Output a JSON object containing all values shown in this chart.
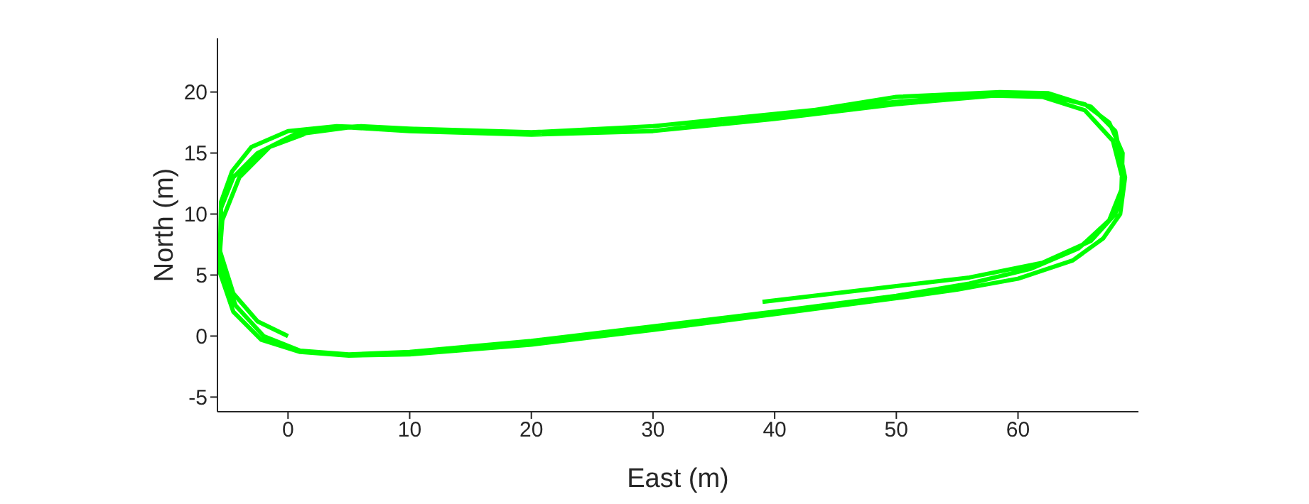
{
  "chart_data": {
    "type": "line",
    "xlabel": "East (m)",
    "ylabel": "North (m)",
    "xlim": [
      -5.8,
      69.9
    ],
    "ylim": [
      -6.2,
      24.4
    ],
    "xticks": [
      0,
      10,
      20,
      30,
      40,
      50,
      60
    ],
    "yticks": [
      -5,
      0,
      5,
      10,
      15,
      20
    ],
    "marker": "none",
    "line_style": "solid",
    "series": [
      {
        "color": "#00ff00",
        "x": [
          0,
          -2.5,
          -4.5,
          -5.6,
          -5.5,
          -4.6,
          -3,
          0,
          4,
          10,
          20,
          30,
          40,
          50,
          58,
          62,
          65.5,
          67.5,
          68.6,
          68.5,
          67.5,
          65,
          61,
          56,
          50,
          40,
          30,
          20,
          10,
          5,
          1,
          -2,
          -4.3,
          -5.6,
          -5.5,
          -4.5,
          -2.5,
          0.5,
          5,
          10,
          20,
          30,
          40,
          50,
          58.5,
          62.5,
          66,
          68,
          68.8,
          68.4,
          67,
          64.5,
          60,
          55,
          50,
          40,
          30,
          20,
          10,
          5,
          1,
          -2.2,
          -4.5,
          -5.7,
          -5.4,
          -4,
          -1.5,
          2,
          6,
          10,
          20,
          30,
          40,
          50,
          58,
          62,
          65.5,
          67.8,
          68.7,
          68,
          66,
          62,
          56,
          50,
          39
        ],
        "values": [
          0,
          1.2,
          3.5,
          7,
          11,
          13.5,
          15.5,
          16.8,
          17.2,
          17,
          16.7,
          17.2,
          18.2,
          19.2,
          19.8,
          19.8,
          19,
          17.5,
          15,
          12,
          9.5,
          7.2,
          5.5,
          4.3,
          3.3,
          2,
          0.8,
          -0.4,
          -1.3,
          -1.5,
          -1.2,
          0,
          2.5,
          6,
          10.5,
          13,
          15,
          16.5,
          17.1,
          16.8,
          16.5,
          16.8,
          18,
          19.6,
          20,
          19.9,
          18.8,
          16.8,
          13,
          10,
          8,
          6.2,
          4.7,
          3.8,
          3.1,
          1.8,
          0.5,
          -0.7,
          -1.5,
          -1.6,
          -1.3,
          -0.3,
          2,
          5.5,
          9.5,
          13,
          15.5,
          16.8,
          17.2,
          17,
          16.6,
          16.8,
          17.8,
          19,
          19.7,
          19.6,
          18.5,
          16,
          12.5,
          10,
          7.8,
          6,
          4.8,
          4.1,
          2.8
        ]
      }
    ]
  }
}
